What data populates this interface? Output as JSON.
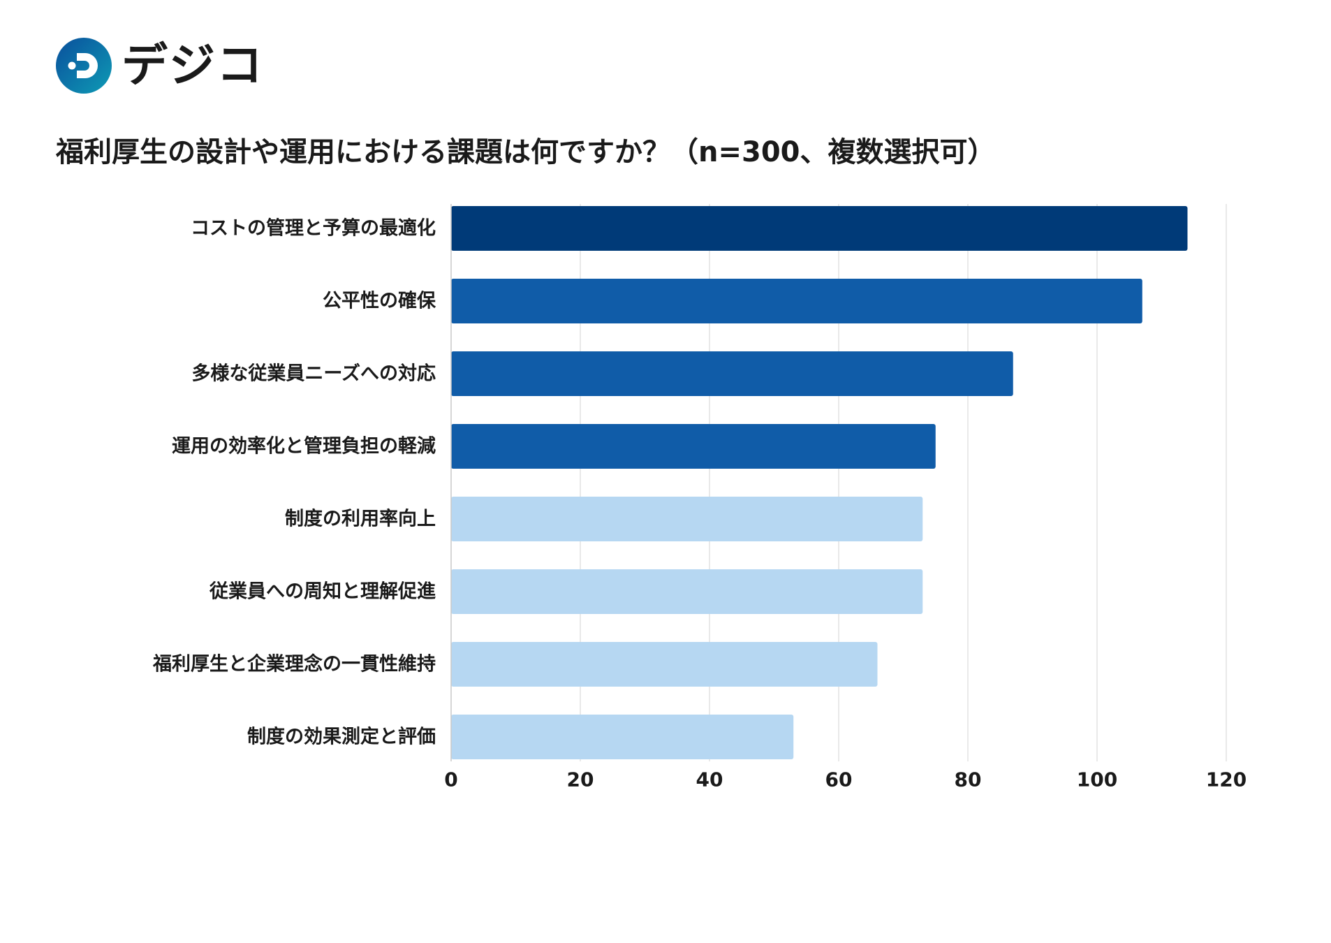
{
  "brand": {
    "name": "デジコ",
    "logo_icon": "digico-d-logo-icon",
    "logo_colors": [
      "#0a4f9c",
      "#0e9bb5"
    ]
  },
  "chart_data": {
    "type": "bar",
    "orientation": "horizontal",
    "title": "福利厚生の設計や運用における課題は何ですか？（n=300、複数選択可）",
    "categories": [
      "コストの管理と予算の最適化",
      "公平性の確保",
      "多様な従業員ニーズへの対応",
      "運用の効率化と管理負担の軽減",
      "制度の利用率向上",
      "従業員への周知と理解促進",
      "福利厚生と企業理念の一貫性維持",
      "制度の効果測定と評価"
    ],
    "values": [
      114,
      107,
      87,
      75,
      73,
      73,
      66,
      53
    ],
    "bar_colors": [
      "#003a78",
      "#105ca8",
      "#105ca8",
      "#105ca8",
      "#b6d7f2",
      "#b6d7f2",
      "#b6d7f2",
      "#b6d7f2"
    ],
    "xlim": [
      0,
      120
    ],
    "xticks": [
      0,
      20,
      40,
      60,
      80,
      100,
      120
    ],
    "xtick_labels": [
      "0",
      "20",
      "40",
      "60",
      "80",
      "100",
      "120"
    ],
    "xlabel": "",
    "ylabel": "",
    "grid": true,
    "grid_axis": "x",
    "legend": false
  }
}
